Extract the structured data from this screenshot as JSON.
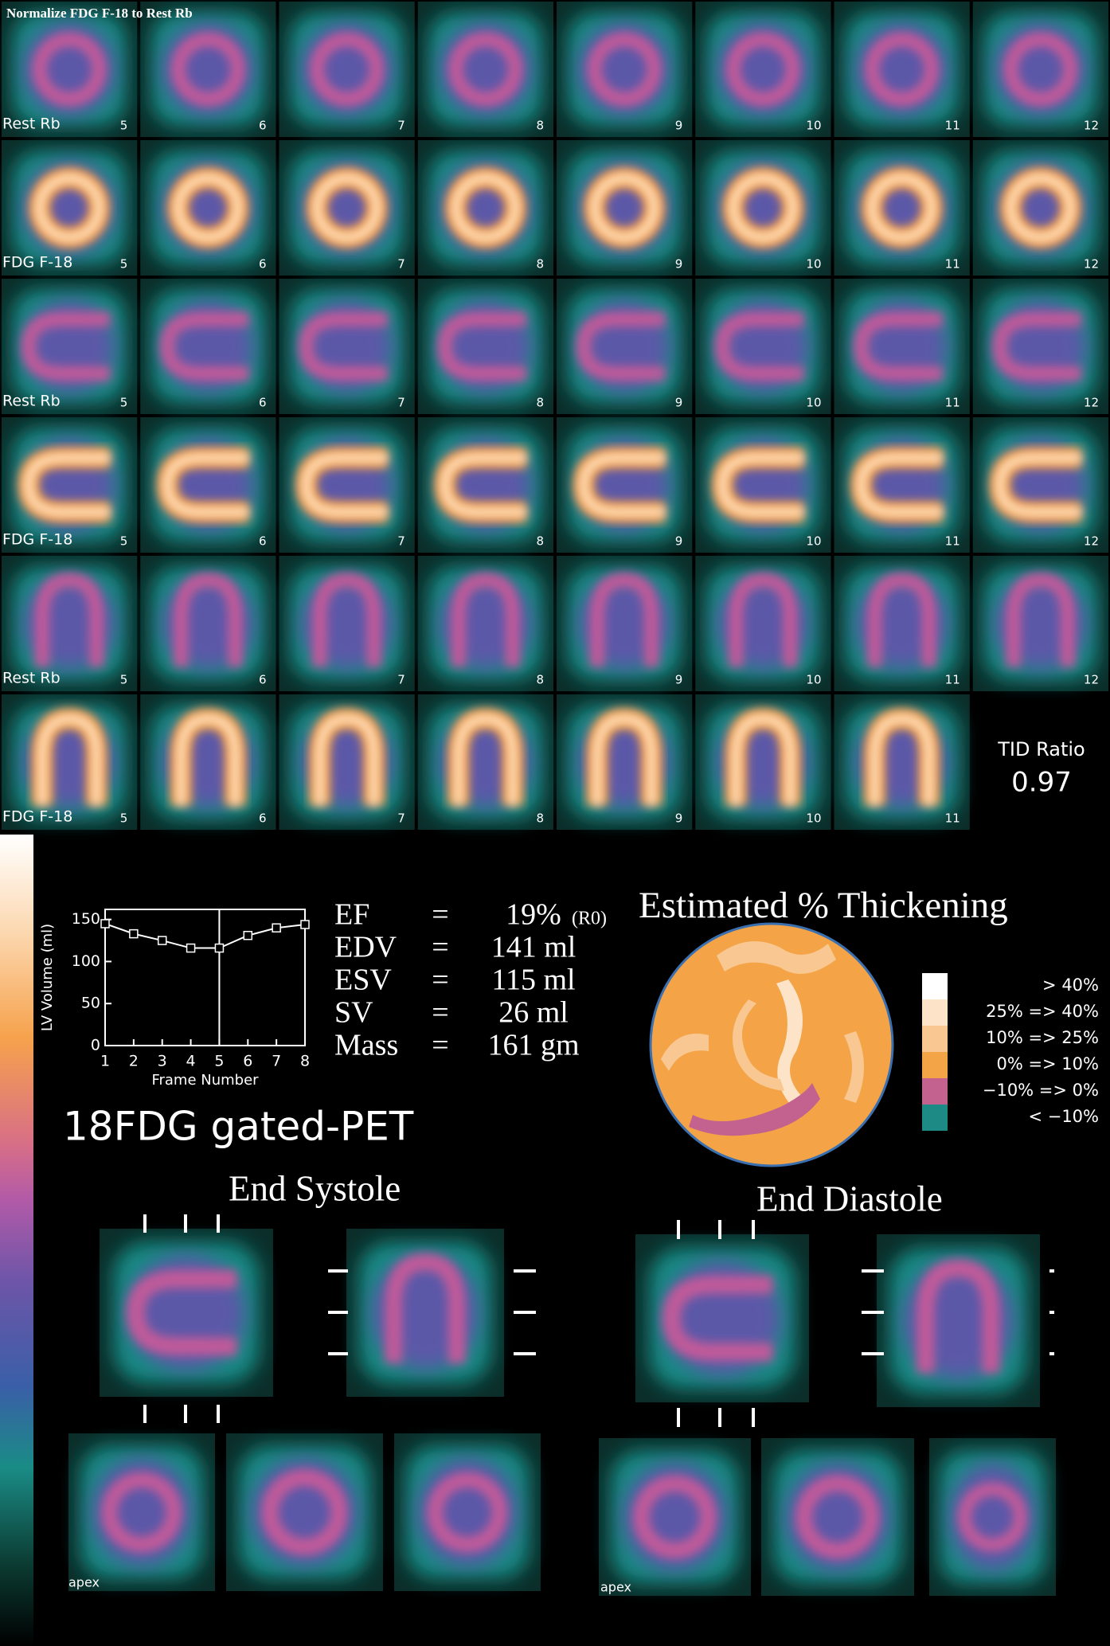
{
  "title": "Normalize FDG F-18 to Rest Rb",
  "rows": [
    {
      "label": "Rest Rb",
      "frames": [
        5,
        6,
        7,
        8,
        9,
        10,
        11,
        12
      ]
    },
    {
      "label": "FDG F-18",
      "frames": [
        5,
        6,
        7,
        8,
        9,
        10,
        11,
        12
      ]
    },
    {
      "label": "Rest Rb",
      "frames": [
        5,
        6,
        7,
        8,
        9,
        10,
        11,
        12
      ]
    },
    {
      "label": "FDG F-18",
      "frames": [
        5,
        6,
        7,
        8,
        9,
        10,
        11,
        12
      ]
    },
    {
      "label": "Rest Rb",
      "frames": [
        5,
        6,
        7,
        8,
        9,
        10,
        11,
        12
      ]
    },
    {
      "label": "FDG F-18",
      "frames": [
        5,
        6,
        7,
        8,
        9,
        10,
        11
      ]
    }
  ],
  "tid": {
    "label": "TID Ratio",
    "value": "0.97"
  },
  "chart_data": {
    "type": "line",
    "x_label": "Frame Number",
    "y_label": "LV Volume (ml)",
    "x": [
      1,
      2,
      3,
      4,
      5,
      6,
      7,
      8
    ],
    "series": [
      {
        "color": "#ffffff",
        "values": [
          145,
          133,
          125,
          116,
          116,
          131,
          140,
          144
        ]
      }
    ],
    "xlim": [
      1,
      8
    ],
    "ylim": [
      0,
      162
    ],
    "xticks": [
      1,
      2,
      3,
      4,
      5,
      6,
      7,
      8
    ],
    "yticks": [
      0,
      50,
      100,
      150
    ],
    "vline_x": 5
  },
  "stats": [
    {
      "name": "EF",
      "op": "=",
      "value": "19%",
      "note": "(R0)"
    },
    {
      "name": "EDV",
      "op": "=",
      "value": "141 ml"
    },
    {
      "name": "ESV",
      "op": "=",
      "value": "115 ml"
    },
    {
      "name": "SV",
      "op": "=",
      "value": "26 ml"
    },
    {
      "name": "Mass",
      "op": "=",
      "value": "161 gm"
    }
  ],
  "study_label": "18FDG gated-PET",
  "thickening": {
    "title": "Estimated % Thickening",
    "legend": [
      {
        "label": "> 40%",
        "color": "#ffffff"
      },
      {
        "label": "25% => 40%",
        "color": "#fde4c8"
      },
      {
        "label": "10% => 25%",
        "color": "#f9c892"
      },
      {
        "label": "0% => 10%",
        "color": "#f3a447"
      },
      {
        "label": "−10% => 0%",
        "color": "#c4628f"
      },
      {
        "label": "< −10%",
        "color": "#1d8a86"
      }
    ]
  },
  "end_systole": {
    "label": "End Systole",
    "apex": "apex"
  },
  "end_diastole": {
    "label": "End Diastole",
    "apex": "apex"
  }
}
